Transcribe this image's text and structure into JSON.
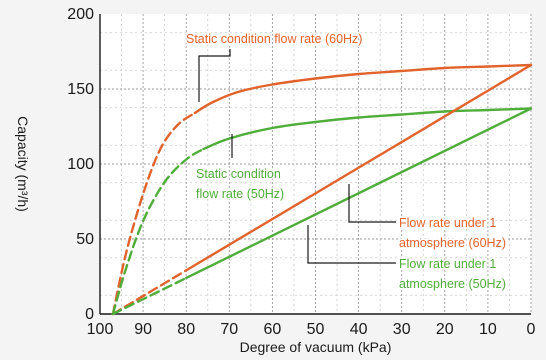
{
  "chart_data": {
    "type": "line",
    "xlabel": "Degree of vacuum (kPa)",
    "ylabel": "Capacity (m³/h)",
    "xlim": [
      100,
      0
    ],
    "ylim": [
      0,
      200
    ],
    "x_ticks": [
      100,
      90,
      80,
      70,
      60,
      50,
      40,
      30,
      20,
      10,
      0
    ],
    "y_ticks": [
      0,
      50,
      100,
      150,
      200
    ],
    "grid": true,
    "colors": {
      "hz60": "#e2622b",
      "hz50": "#4fad3a"
    },
    "series": [
      {
        "name": "Static condition flow rate (60Hz)",
        "color": "#e2622b",
        "points": [
          [
            97,
            0
          ],
          [
            94,
            40
          ],
          [
            90,
            80
          ],
          [
            86,
            110
          ],
          [
            82,
            126
          ],
          [
            78,
            134
          ],
          [
            74,
            141
          ],
          [
            68,
            148
          ],
          [
            60,
            153
          ],
          [
            50,
            157
          ],
          [
            40,
            160
          ],
          [
            30,
            162
          ],
          [
            20,
            164
          ],
          [
            10,
            165
          ],
          [
            0,
            166
          ]
        ],
        "dashed_until_x": 78
      },
      {
        "name": "Static condition flow rate (50Hz)",
        "color": "#4fad3a",
        "points": [
          [
            97,
            0
          ],
          [
            94,
            30
          ],
          [
            90,
            62
          ],
          [
            85,
            88
          ],
          [
            80,
            103
          ],
          [
            76,
            110
          ],
          [
            70,
            117
          ],
          [
            60,
            124
          ],
          [
            50,
            128
          ],
          [
            40,
            131
          ],
          [
            30,
            133
          ],
          [
            20,
            135
          ],
          [
            10,
            136
          ],
          [
            0,
            137
          ]
        ],
        "dashed_until_x": 76
      },
      {
        "name": "Flow rate under 1 atmosphere (60Hz)",
        "color": "#e2622b",
        "points": [
          [
            97,
            0
          ],
          [
            0,
            166
          ]
        ],
        "dashed_until_x": 80
      },
      {
        "name": "Flow rate under 1 atmosphere (50Hz)",
        "color": "#4fad3a",
        "points": [
          [
            97,
            0
          ],
          [
            0,
            137
          ]
        ],
        "dashed_until_x": 80
      }
    ],
    "annotations": [
      {
        "id": "a60s",
        "lines": [
          "Static condition flow rate (60Hz)"
        ],
        "color": "#e2622b"
      },
      {
        "id": "a50s",
        "lines": [
          "Static condition",
          "flow rate (50Hz)"
        ],
        "color": "#4fad3a"
      },
      {
        "id": "a60a",
        "lines": [
          "Flow rate under 1",
          "atmosphere (60Hz)"
        ],
        "color": "#e2622b"
      },
      {
        "id": "a50a",
        "lines": [
          "Flow rate under 1",
          "atmosphere (50Hz)"
        ],
        "color": "#4fad3a"
      }
    ]
  }
}
